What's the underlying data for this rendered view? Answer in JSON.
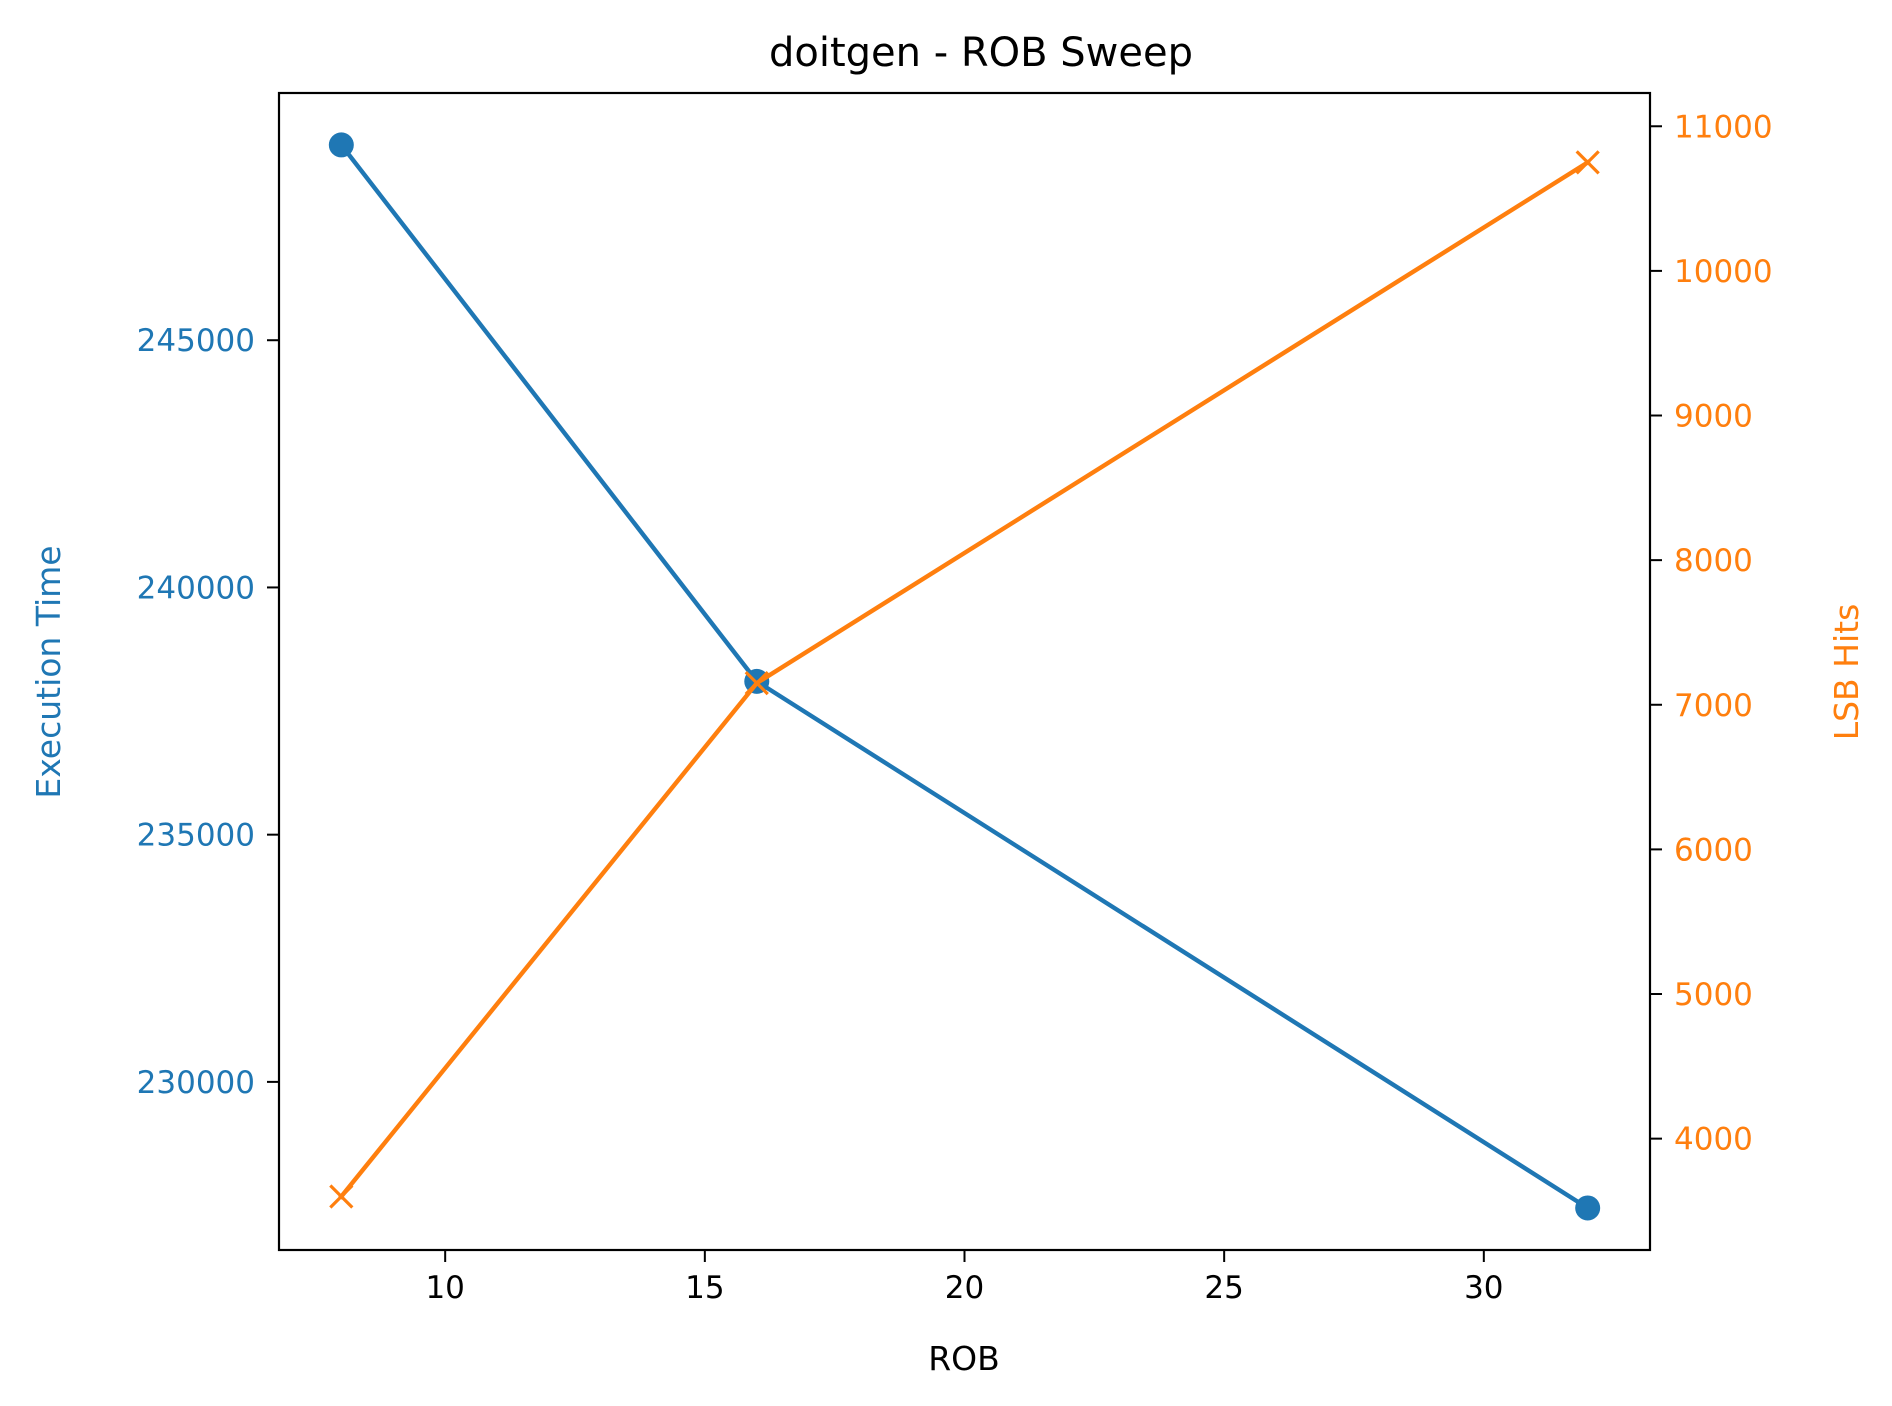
{
  "chart_data": {
    "type": "line",
    "title": "doitgen - ROB Sweep",
    "xlabel": "ROB",
    "ylabel_left": "Execution Time",
    "ylabel_right": "LSB Hits",
    "x": [
      8,
      16,
      32
    ],
    "xlim": [
      6.8,
      33.2
    ],
    "xticks": [
      10,
      15,
      20,
      25,
      30
    ],
    "ylim_left": [
      226600,
      250000
    ],
    "yticks_left": [
      230000,
      235000,
      240000,
      245000
    ],
    "ylim_right": [
      3230,
      11230
    ],
    "yticks_right": [
      4000,
      5000,
      6000,
      7000,
      8000,
      9000,
      10000,
      11000
    ],
    "grid": false,
    "legend": "none",
    "series": [
      {
        "axis": "left",
        "values": [
          248950,
          238100,
          227450
        ],
        "marker": "circle",
        "color": "#1f77b4"
      },
      {
        "axis": "right",
        "values": [
          3600,
          7150,
          10750
        ],
        "marker": "x",
        "color": "#ff7f0e"
      }
    ]
  }
}
